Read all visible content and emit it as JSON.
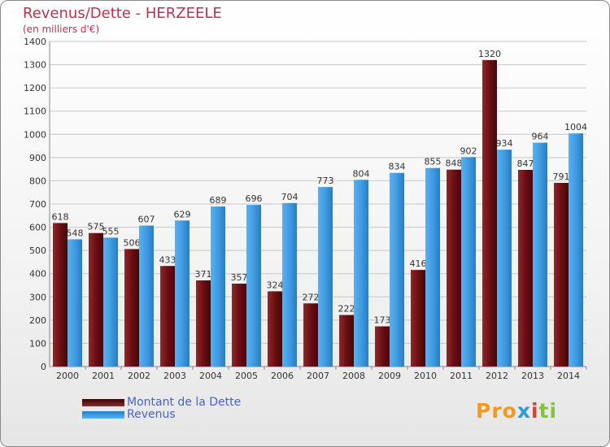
{
  "title": "Revenus/Dette - HERZEELE",
  "subtitle": "(en milliers d'€)",
  "colors": {
    "dette": "#6b0f12",
    "revenus": "#3f9be0",
    "axis_text": "#333333",
    "title": "#b5344f",
    "legend_text": "#4a63c8"
  },
  "legend": {
    "dette_label": "Montant de la Dette",
    "revenus_label": "Revenus"
  },
  "logo": {
    "p1": "Pro",
    "p2": "x",
    "p3": "i",
    "p4": "ti"
  },
  "chart_data": {
    "type": "bar",
    "categories": [
      "2000",
      "2001",
      "2002",
      "2003",
      "2004",
      "2005",
      "2006",
      "2007",
      "2008",
      "2009",
      "2010",
      "2011",
      "2012",
      "2013",
      "2014"
    ],
    "series": [
      {
        "name": "Montant de la Dette",
        "values": [
          618,
          575,
          506,
          433,
          371,
          357,
          324,
          272,
          222,
          173,
          416,
          848,
          1320,
          847,
          791
        ]
      },
      {
        "name": "Revenus",
        "values": [
          548,
          555,
          607,
          629,
          689,
          696,
          704,
          773,
          804,
          834,
          855,
          902,
          934,
          964,
          1004
        ]
      }
    ],
    "y_ticks": [
      0,
      100,
      200,
      300,
      400,
      500,
      600,
      700,
      800,
      900,
      1000,
      1100,
      1200,
      1300,
      1400
    ],
    "ylim": [
      0,
      1400
    ],
    "grid": true,
    "legend_position": "bottom-left"
  }
}
